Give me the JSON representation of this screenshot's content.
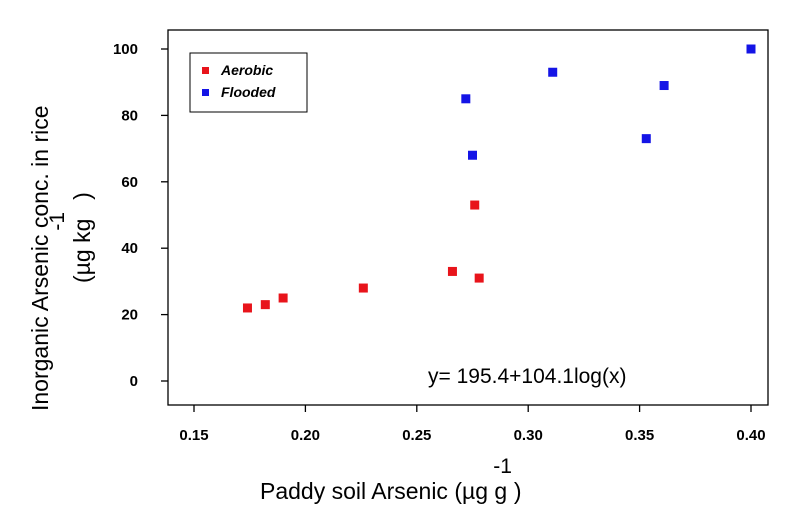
{
  "chart_data": {
    "type": "scatter",
    "xlabel": "Paddy soil Arsenic (µg g",
    "xlabel_superscript": "-1",
    "xlabel_suffix": ")",
    "ylabel_line1": "Inorganic Arsenic conc. in rice",
    "ylabel_line2": "(µg kg",
    "ylabel_superscript": "-1",
    "ylabel_suffix": ")",
    "xlim": [
      0.15,
      0.4
    ],
    "ylim": [
      0,
      100
    ],
    "xticks": [
      "0.15",
      "0.20",
      "0.25",
      "0.30",
      "0.35",
      "0.40"
    ],
    "yticks": [
      "0",
      "20",
      "40",
      "60",
      "80",
      "100"
    ],
    "legend_position": "top-left",
    "annotation": "y= 195.4+104.1log(x)",
    "series": [
      {
        "name": "Aerobic",
        "color": "#e8141b",
        "points": [
          [
            0.174,
            22
          ],
          [
            0.182,
            23
          ],
          [
            0.19,
            25
          ],
          [
            0.226,
            28
          ],
          [
            0.266,
            33
          ],
          [
            0.276,
            53
          ],
          [
            0.278,
            31
          ]
        ]
      },
      {
        "name": "Flooded",
        "color": "#1414e6",
        "points": [
          [
            0.272,
            85
          ],
          [
            0.275,
            68
          ],
          [
            0.311,
            93
          ],
          [
            0.353,
            73
          ],
          [
            0.361,
            89
          ],
          [
            0.4,
            100
          ]
        ]
      }
    ],
    "fit_curve": {
      "color": "#8fbf8f",
      "intercept": 195.4,
      "slope": 104.1,
      "x_range": [
        0.174,
        0.4
      ]
    }
  }
}
